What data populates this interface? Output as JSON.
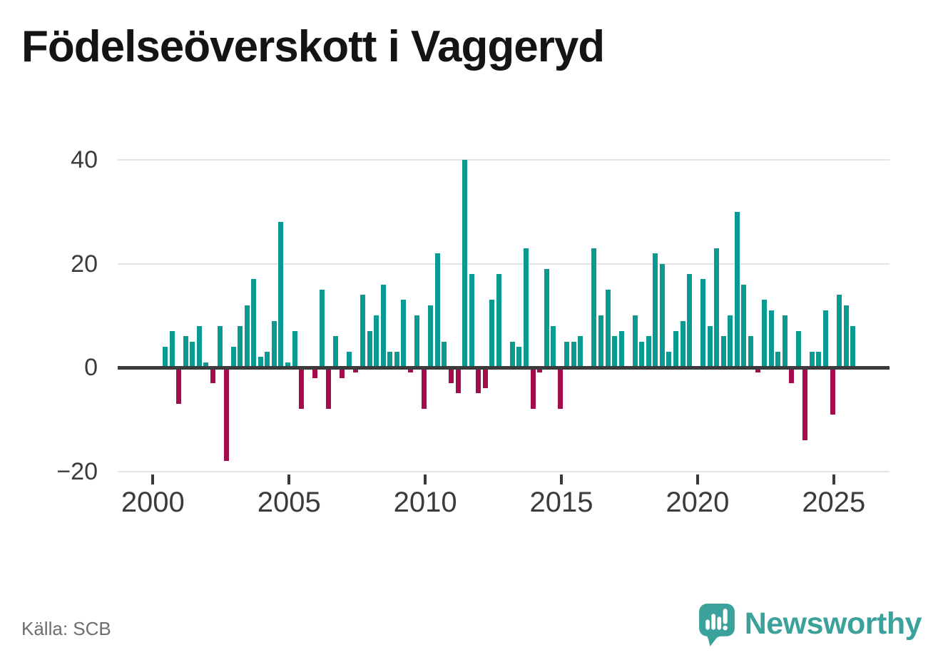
{
  "title": "Födelseöverskott i Vaggeryd",
  "source": "Källa: SCB",
  "branding": {
    "logo_text": "Newsworthy",
    "logo_color": "#3ba29b"
  },
  "chart_data": {
    "type": "bar",
    "title": "Födelseöverskott i Vaggeryd",
    "frequency": "quarterly",
    "start": "2000-Q2",
    "end": "2025-Q3",
    "grid": "horizontal",
    "legend": "none",
    "ylim": [
      -20,
      40
    ],
    "positive_color": "#0a9a91",
    "negative_color": "#a30d4e",
    "yticks": [
      {
        "value": 40,
        "label": "40"
      },
      {
        "value": 20,
        "label": "20"
      },
      {
        "value": 0,
        "label": "0"
      },
      {
        "value": -20,
        "label": "−20"
      }
    ],
    "xticks": [
      {
        "year": 2000,
        "label": "2000"
      },
      {
        "year": 2005,
        "label": "2005"
      },
      {
        "year": 2010,
        "label": "2010"
      },
      {
        "year": 2015,
        "label": "2015"
      },
      {
        "year": 2020,
        "label": "2020"
      },
      {
        "year": 2025,
        "label": "2025"
      }
    ],
    "quarters": [
      "2000-Q2",
      "2000-Q3",
      "2000-Q4",
      "2001-Q1",
      "2001-Q2",
      "2001-Q3",
      "2001-Q4",
      "2002-Q1",
      "2002-Q2",
      "2002-Q3",
      "2002-Q4",
      "2003-Q1",
      "2003-Q2",
      "2003-Q3",
      "2003-Q4",
      "2004-Q1",
      "2004-Q2",
      "2004-Q3",
      "2004-Q4",
      "2005-Q1",
      "2005-Q2",
      "2005-Q3",
      "2005-Q4",
      "2006-Q1",
      "2006-Q2",
      "2006-Q3",
      "2006-Q4",
      "2007-Q1",
      "2007-Q2",
      "2007-Q3",
      "2007-Q4",
      "2008-Q1",
      "2008-Q2",
      "2008-Q3",
      "2008-Q4",
      "2009-Q1",
      "2009-Q2",
      "2009-Q3",
      "2009-Q4",
      "2010-Q1",
      "2010-Q2",
      "2010-Q3",
      "2010-Q4",
      "2011-Q1",
      "2011-Q2",
      "2011-Q3",
      "2011-Q4",
      "2012-Q1",
      "2012-Q2",
      "2012-Q3",
      "2012-Q4",
      "2013-Q1",
      "2013-Q2",
      "2013-Q3",
      "2013-Q4",
      "2014-Q1",
      "2014-Q2",
      "2014-Q3",
      "2014-Q4",
      "2015-Q1",
      "2015-Q2",
      "2015-Q3",
      "2015-Q4",
      "2016-Q1",
      "2016-Q2",
      "2016-Q3",
      "2016-Q4",
      "2017-Q1",
      "2017-Q2",
      "2017-Q3",
      "2017-Q4",
      "2018-Q1",
      "2018-Q2",
      "2018-Q3",
      "2018-Q4",
      "2019-Q1",
      "2019-Q2",
      "2019-Q3",
      "2019-Q4",
      "2020-Q1",
      "2020-Q2",
      "2020-Q3",
      "2020-Q4",
      "2021-Q1",
      "2021-Q2",
      "2021-Q3",
      "2021-Q4",
      "2022-Q1",
      "2022-Q2",
      "2022-Q3",
      "2022-Q4",
      "2023-Q1",
      "2023-Q2",
      "2023-Q3",
      "2023-Q4",
      "2024-Q1",
      "2024-Q2",
      "2024-Q3",
      "2024-Q4",
      "2025-Q1",
      "2025-Q2",
      "2025-Q3"
    ],
    "values": [
      4,
      7,
      -7,
      6,
      5,
      8,
      1,
      -3,
      8,
      -18,
      4,
      8,
      12,
      17,
      2,
      3,
      9,
      28,
      1,
      7,
      -8,
      0,
      -2,
      15,
      -8,
      6,
      -2,
      3,
      -1,
      14,
      7,
      10,
      16,
      3,
      3,
      13,
      -1,
      10,
      -8,
      12,
      22,
      5,
      -3,
      -5,
      40,
      18,
      -5,
      -4,
      13,
      18,
      0,
      5,
      4,
      23,
      -8,
      -1,
      19,
      8,
      -8,
      5,
      5,
      6,
      0,
      23,
      10,
      15,
      6,
      7,
      0,
      10,
      5,
      6,
      22,
      20,
      3,
      7,
      9,
      18,
      0,
      17,
      8,
      23,
      6,
      10,
      30,
      16,
      6,
      -1,
      13,
      11,
      3,
      10,
      -3,
      7,
      -14,
      3,
      3,
      11,
      -9,
      14,
      12,
      8
    ]
  }
}
